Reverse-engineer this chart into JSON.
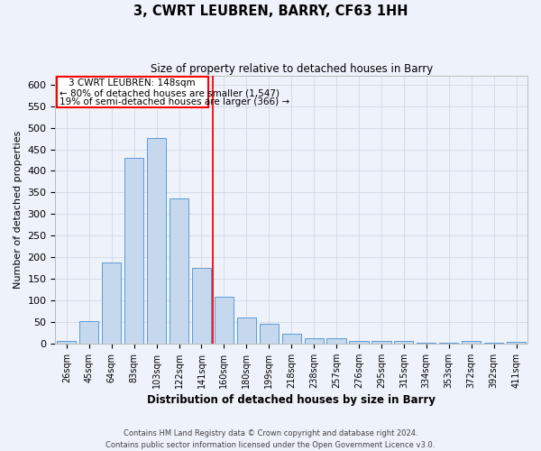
{
  "title": "3, CWRT LEUBREN, BARRY, CF63 1HH",
  "subtitle": "Size of property relative to detached houses in Barry",
  "xlabel": "Distribution of detached houses by size in Barry",
  "ylabel": "Number of detached properties",
  "categories": [
    "26sqm",
    "45sqm",
    "64sqm",
    "83sqm",
    "103sqm",
    "122sqm",
    "141sqm",
    "160sqm",
    "180sqm",
    "199sqm",
    "218sqm",
    "238sqm",
    "257sqm",
    "276sqm",
    "295sqm",
    "315sqm",
    "334sqm",
    "353sqm",
    "372sqm",
    "392sqm",
    "411sqm"
  ],
  "values": [
    5,
    51,
    188,
    430,
    476,
    337,
    175,
    108,
    60,
    45,
    22,
    12,
    13,
    6,
    5,
    5,
    2,
    1,
    6,
    2,
    3
  ],
  "bar_color": "#c5d8ed",
  "bar_edge_color": "#5b9bd5",
  "vline_color": "red",
  "vline_pos": 6.5,
  "annotation_line1": "3 CWRT LEUBREN: 148sqm",
  "annotation_line2": "← 80% of detached houses are smaller (1,547)",
  "annotation_line3": "19% of semi-detached houses are larger (366) →",
  "annotation_box_color": "#ffffff",
  "annotation_box_edge": "red",
  "grid_color": "#d0d8e8",
  "background_color": "#eef2fa",
  "footer_line1": "Contains HM Land Registry data © Crown copyright and database right 2024.",
  "footer_line2": "Contains public sector information licensed under the Open Government Licence v3.0.",
  "ylim": [
    0,
    620
  ],
  "yticks": [
    0,
    50,
    100,
    150,
    200,
    250,
    300,
    350,
    400,
    450,
    500,
    550,
    600
  ]
}
